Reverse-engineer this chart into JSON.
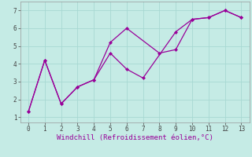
{
  "xlabel": "Windchill (Refroidissement éolien,°C)",
  "background_color": "#c5ebe5",
  "line_color": "#990099",
  "xlim": [
    -0.5,
    13.5
  ],
  "ylim": [
    0.7,
    7.5
  ],
  "xticks": [
    0,
    1,
    2,
    3,
    4,
    5,
    6,
    7,
    8,
    9,
    10,
    11,
    12,
    13
  ],
  "yticks": [
    1,
    2,
    3,
    4,
    5,
    6,
    7
  ],
  "line1_x": [
    0,
    1,
    2,
    3,
    4,
    5,
    6,
    7,
    9,
    10,
    11,
    12,
    13
  ],
  "line1_y": [
    1.3,
    4.2,
    1.75,
    2.7,
    3.1,
    4.6,
    3.7,
    3.2,
    5.8,
    6.5,
    6.6,
    7.0,
    6.6
  ],
  "line2_x": [
    0,
    1,
    2,
    3,
    4,
    5,
    6,
    8,
    9,
    10,
    11,
    12,
    13
  ],
  "line2_y": [
    1.3,
    4.2,
    1.75,
    2.7,
    3.1,
    5.2,
    6.0,
    4.6,
    4.8,
    6.5,
    6.6,
    7.0,
    6.6
  ],
  "grid_color": "#a8d8d2",
  "marker": "D",
  "markersize": 2.5,
  "linewidth": 0.9
}
